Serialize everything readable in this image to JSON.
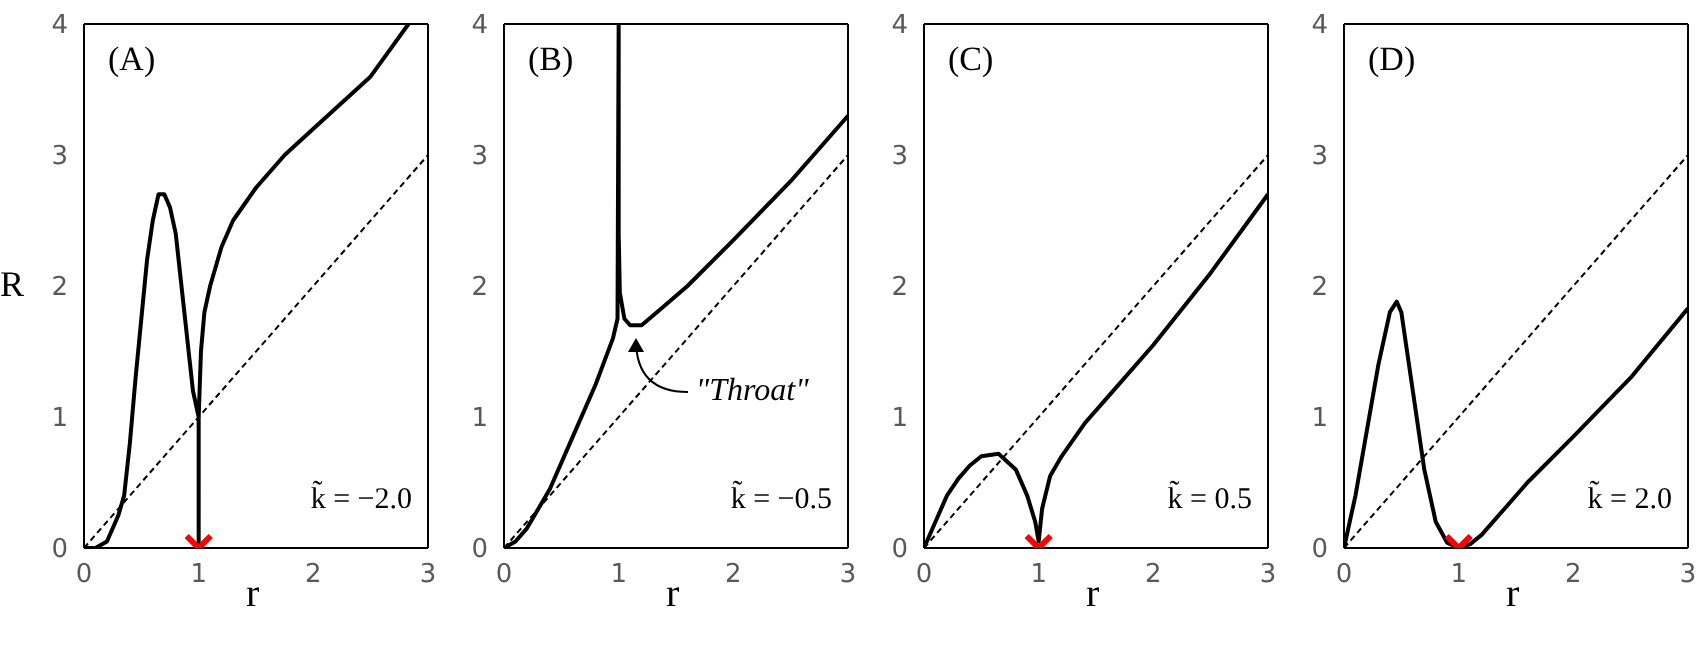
{
  "chart_data": [
    {
      "type": "line",
      "xlabel": "r",
      "ylabel": "R",
      "xlim": [
        0,
        3
      ],
      "xticks": [
        0,
        1,
        2,
        3
      ],
      "ylim": [
        0,
        4
      ],
      "yticks": [
        0,
        1,
        2,
        3,
        4
      ],
      "grid": false,
      "legend": false,
      "annotations": [
        "(A)",
        "k̃ = −2.0"
      ],
      "series": [
        {
          "color": "#000000",
          "line_style": "solid",
          "marker": "none",
          "x": [
            0,
            0.1,
            0.2,
            0.3,
            0.35,
            0.4,
            0.45,
            0.5,
            0.55,
            0.6,
            0.65,
            0.7,
            0.75,
            0.8,
            0.85,
            0.9,
            0.95,
            1.0,
            1.0,
            1.0,
            1.02,
            1.05,
            1.1,
            1.2,
            1.3,
            1.5,
            1.75,
            2.0,
            2.5,
            2.83
          ],
          "values": [
            0,
            0,
            0.05,
            0.25,
            0.4,
            0.8,
            1.3,
            1.75,
            2.2,
            2.5,
            2.7,
            2.7,
            2.6,
            2.4,
            2.0,
            1.6,
            1.2,
            1.0,
            0,
            1.0,
            1.5,
            1.8,
            2.0,
            2.3,
            2.5,
            2.75,
            3.0,
            3.2,
            3.6,
            4.0
          ]
        },
        {
          "color": "#000000",
          "line_style": "dashed",
          "marker": "none",
          "x": [
            0,
            3
          ],
          "values": [
            0,
            3
          ]
        },
        {
          "type": "scatter",
          "color": "#ff0000",
          "marker": "cross",
          "x": [
            1
          ],
          "values": [
            0
          ]
        }
      ]
    },
    {
      "type": "line",
      "xlabel": "r",
      "xlim": [
        0,
        3
      ],
      "xticks": [
        0,
        1,
        2,
        3
      ],
      "ylim": [
        0,
        4
      ],
      "yticks": [
        0,
        1,
        2,
        3,
        4
      ],
      "grid": false,
      "legend": false,
      "annotations": [
        "(B)",
        "k̃ = −0.5",
        {
          "text": "\"Throat\"",
          "x": 1.15,
          "y": 1.7
        }
      ],
      "series": [
        {
          "color": "#000000",
          "line_style": "solid",
          "marker": "none",
          "x": [
            0,
            0.1,
            0.2,
            0.4,
            0.6,
            0.8,
            0.95,
            0.99,
            1.0,
            1.0,
            1.01,
            1.05,
            1.1,
            1.2,
            1.4,
            1.6,
            2.0,
            2.5,
            3.0
          ],
          "values": [
            0,
            0.05,
            0.15,
            0.45,
            0.85,
            1.25,
            1.6,
            1.75,
            4.0,
            2.4,
            1.95,
            1.75,
            1.7,
            1.7,
            1.85,
            2.0,
            2.35,
            2.8,
            3.3
          ]
        },
        {
          "color": "#000000",
          "line_style": "dashed",
          "marker": "none",
          "x": [
            0,
            3
          ],
          "values": [
            0,
            3
          ]
        }
      ]
    },
    {
      "type": "line",
      "xlabel": "r",
      "xlim": [
        0,
        3
      ],
      "xticks": [
        0,
        1,
        2,
        3
      ],
      "ylim": [
        0,
        4
      ],
      "yticks": [
        0,
        1,
        2,
        3,
        4
      ],
      "grid": false,
      "legend": false,
      "annotations": [
        "(C)",
        "k̃ = 0.5"
      ],
      "series": [
        {
          "color": "#000000",
          "line_style": "solid",
          "marker": "none",
          "x": [
            0,
            0.1,
            0.2,
            0.3,
            0.4,
            0.5,
            0.65,
            0.8,
            0.9,
            0.97,
            1.0,
            1.0,
            1.03,
            1.1,
            1.2,
            1.4,
            1.6,
            2.0,
            2.5,
            3.0
          ],
          "values": [
            0,
            0.2,
            0.4,
            0.53,
            0.63,
            0.7,
            0.72,
            0.6,
            0.4,
            0.2,
            0.05,
            0.05,
            0.3,
            0.55,
            0.7,
            0.95,
            1.15,
            1.55,
            2.1,
            2.7
          ]
        },
        {
          "color": "#000000",
          "line_style": "dashed",
          "marker": "none",
          "x": [
            0,
            3
          ],
          "values": [
            0,
            3
          ]
        },
        {
          "type": "scatter",
          "color": "#ff0000",
          "marker": "cross",
          "x": [
            1
          ],
          "values": [
            0
          ]
        }
      ]
    },
    {
      "type": "line",
      "xlabel": "r",
      "xlim": [
        0,
        3
      ],
      "xticks": [
        0,
        1,
        2,
        3
      ],
      "ylim": [
        0,
        4
      ],
      "yticks": [
        0,
        1,
        2,
        3,
        4
      ],
      "grid": false,
      "legend": false,
      "annotations": [
        "(D)",
        "k̃ = 2.0"
      ],
      "series": [
        {
          "color": "#000000",
          "line_style": "solid",
          "marker": "none",
          "x": [
            0,
            0.1,
            0.2,
            0.3,
            0.4,
            0.46,
            0.5,
            0.6,
            0.7,
            0.8,
            0.9,
            1.0,
            1.1,
            1.2,
            1.4,
            1.6,
            2.0,
            2.5,
            3.0
          ],
          "values": [
            0,
            0.4,
            0.9,
            1.4,
            1.8,
            1.88,
            1.8,
            1.2,
            0.6,
            0.2,
            0.04,
            0,
            0.03,
            0.1,
            0.3,
            0.5,
            0.85,
            1.3,
            1.83
          ]
        },
        {
          "color": "#000000",
          "line_style": "dashed",
          "marker": "none",
          "x": [
            0,
            3
          ],
          "values": [
            0,
            3
          ]
        },
        {
          "type": "scatter",
          "color": "#ff0000",
          "marker": "cross",
          "x": [
            1
          ],
          "values": [
            0
          ]
        }
      ]
    }
  ]
}
